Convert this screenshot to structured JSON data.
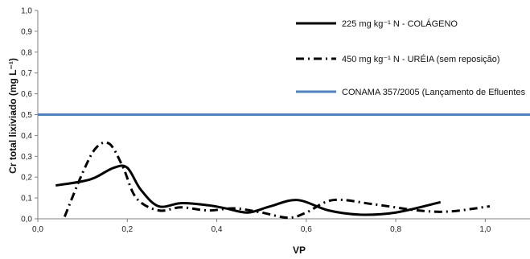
{
  "chart_data": {
    "type": "line",
    "xlabel": "VP",
    "ylabel": "Cr total lixiviado (mg L⁻¹)",
    "xlim": [
      0.0,
      1.1
    ],
    "ylim": [
      0.0,
      1.0
    ],
    "x_ticks": [
      "0,0",
      "0,2",
      "0,4",
      "0,6",
      "0,8",
      "1,0"
    ],
    "x_tick_values": [
      0.0,
      0.2,
      0.4,
      0.6,
      0.8,
      1.0
    ],
    "y_ticks": [
      "0,0",
      "0,1",
      "0,2",
      "0,3",
      "0,4",
      "0,5",
      "0,6",
      "0,7",
      "0,8",
      "0,9",
      "1,0"
    ],
    "y_tick_values": [
      0.0,
      0.1,
      0.2,
      0.3,
      0.4,
      0.5,
      0.6,
      0.7,
      0.8,
      0.9,
      1.0
    ],
    "grid": false,
    "legend_position": "top-right",
    "series": [
      {
        "name": "225 mg kg⁻¹ N - COLÁGENO",
        "style": "solid",
        "color": "#000000",
        "x": [
          0.04,
          0.1,
          0.13,
          0.17,
          0.2,
          0.23,
          0.27,
          0.32,
          0.38,
          0.42,
          0.47,
          0.52,
          0.58,
          0.65,
          0.72,
          0.8,
          0.9
        ],
        "y": [
          0.16,
          0.18,
          0.2,
          0.245,
          0.245,
          0.14,
          0.06,
          0.075,
          0.065,
          0.05,
          0.03,
          0.06,
          0.09,
          0.04,
          0.02,
          0.03,
          0.08
        ]
      },
      {
        "name": "450 mg kg⁻¹ N - URÉIA (sem reposição)",
        "style": "dash-dot",
        "color": "#000000",
        "x": [
          0.06,
          0.1,
          0.13,
          0.16,
          0.19,
          0.22,
          0.27,
          0.32,
          0.38,
          0.44,
          0.5,
          0.56,
          0.6,
          0.66,
          0.75,
          0.85,
          0.92,
          1.01
        ],
        "y": [
          0.01,
          0.22,
          0.34,
          0.36,
          0.25,
          0.1,
          0.04,
          0.055,
          0.04,
          0.05,
          0.03,
          0.005,
          0.03,
          0.09,
          0.07,
          0.04,
          0.035,
          0.06
        ]
      },
      {
        "name": "CONAMA 357/2005 (Lançamento de Efluentes",
        "style": "solid",
        "color": "#4f81bd",
        "x": [
          0.0,
          1.1
        ],
        "y": [
          0.5,
          0.5
        ]
      }
    ]
  }
}
